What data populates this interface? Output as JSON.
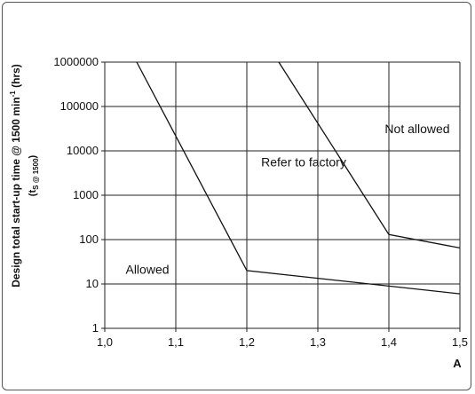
{
  "chart_data": {
    "type": "line",
    "xlabel": "A",
    "ylabel": "Design total start-up time @ 1500 min",
    "ylabel_sup": "-1",
    "ylabel_unit": " (hrs)",
    "ylabel_sub_open": "(t",
    "ylabel_sub_s": "S",
    "ylabel_sub_rest": " @ 1500",
    "ylabel_sub_close": ")",
    "xlim": [
      1.0,
      1.5
    ],
    "ylim": [
      1,
      1000000
    ],
    "yscale": "log",
    "grid": true,
    "x_ticks": [
      {
        "value": 1.0,
        "label": "1,0"
      },
      {
        "value": 1.1,
        "label": "1,1"
      },
      {
        "value": 1.2,
        "label": "1,2"
      },
      {
        "value": 1.3,
        "label": "1,3"
      },
      {
        "value": 1.4,
        "label": "1,4"
      },
      {
        "value": 1.5,
        "label": "1,5"
      }
    ],
    "y_ticks": [
      {
        "value": 1,
        "label": "1"
      },
      {
        "value": 10,
        "label": "10"
      },
      {
        "value": 100,
        "label": "100"
      },
      {
        "value": 1000,
        "label": "1000"
      },
      {
        "value": 10000,
        "label": "10000"
      },
      {
        "value": 100000,
        "label": "100000"
      },
      {
        "value": 1000000,
        "label": "1000000"
      }
    ],
    "series": [
      {
        "points": [
          [
            1.045,
            1000000
          ],
          [
            1.2,
            20
          ],
          [
            1.5,
            6
          ]
        ]
      },
      {
        "points": [
          [
            1.245,
            1000000
          ],
          [
            1.4,
            130
          ],
          [
            1.5,
            65
          ]
        ]
      }
    ],
    "annotations": [
      {
        "text": "Allowed",
        "x": 1.06,
        "y": 17
      },
      {
        "text": "Refer to factory",
        "x": 1.28,
        "y": 4500
      },
      {
        "text": "Not allowed",
        "x": 1.44,
        "y": 25000
      }
    ]
  }
}
